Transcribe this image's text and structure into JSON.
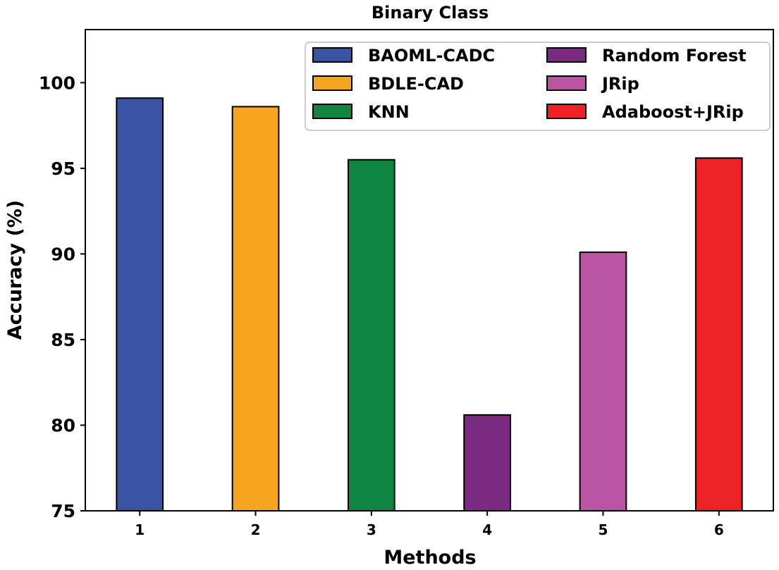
{
  "chart_data": {
    "type": "bar",
    "title": "Binary Class",
    "xlabel": "Methods",
    "ylabel": "Accuracy (%)",
    "categories": [
      "1",
      "2",
      "3",
      "4",
      "5",
      "6"
    ],
    "series": [
      {
        "name": "BAOML-CADC",
        "x": 1,
        "value": 99.1,
        "color": "#3a53a4"
      },
      {
        "name": "BDLE-CAD",
        "x": 2,
        "value": 98.6,
        "color": "#f7a51f"
      },
      {
        "name": "KNN",
        "x": 3,
        "value": 95.5,
        "color": "#0f8542"
      },
      {
        "name": "Random Forest",
        "x": 4,
        "value": 80.6,
        "color": "#7a2a80"
      },
      {
        "name": "JRip",
        "x": 5,
        "value": 90.1,
        "color": "#b955a2"
      },
      {
        "name": "Adaboost+JRip",
        "x": 6,
        "value": 95.6,
        "color": "#ec2227"
      }
    ],
    "yticks": [
      "75",
      "80",
      "85",
      "90",
      "95",
      "100"
    ],
    "ylim": [
      75,
      103.1
    ],
    "xlim": [
      0.53,
      6.47
    ],
    "grid": false,
    "legend_position": "top-right",
    "legend_columns": 2
  }
}
